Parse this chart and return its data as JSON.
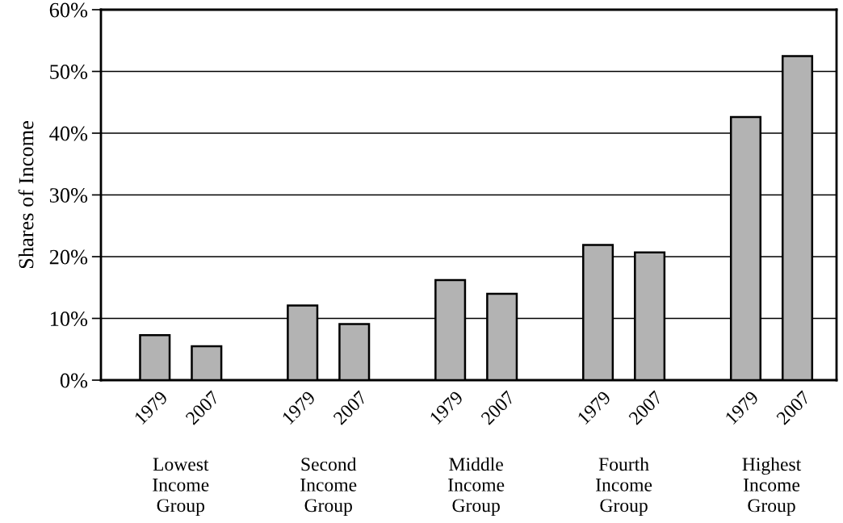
{
  "chart_data": {
    "type": "bar",
    "ylabel": "Shares of Income",
    "categories": [
      "Lowest\nIncome\nGroup",
      "Second\nIncome\nGroup",
      "Middle\nIncome\nGroup",
      "Fourth\nIncome\nGroup",
      "Highest\nIncome\nGroup"
    ],
    "series": [
      {
        "name": "1979",
        "color": "#b3b3b3",
        "values": [
          7.3,
          12.1,
          16.2,
          21.9,
          42.6
        ]
      },
      {
        "name": "2007",
        "color": "#b3b3b3",
        "values": [
          5.5,
          9.1,
          14.0,
          20.7,
          52.5
        ]
      }
    ],
    "ylim": [
      0,
      60
    ],
    "yticks": [
      {
        "value": 0,
        "label": "0%"
      },
      {
        "value": 10,
        "label": "10%"
      },
      {
        "value": 20,
        "label": "20%"
      },
      {
        "value": 30,
        "label": "30%"
      },
      {
        "value": 40,
        "label": "40%"
      },
      {
        "value": 50,
        "label": "50%"
      },
      {
        "value": 60,
        "label": "60%"
      }
    ],
    "grid": "y",
    "legend": false
  }
}
